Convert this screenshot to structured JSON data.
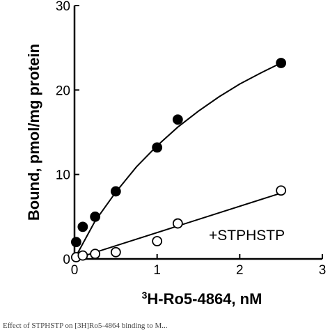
{
  "chart_data": {
    "type": "scatter",
    "xlabel_super": "3",
    "xlabel": "H-Ro5-4864, nM",
    "ylabel": "Bound, pmol/mg protein",
    "xlim": [
      0,
      3
    ],
    "ylim": [
      0,
      30
    ],
    "x_ticks": [
      "0",
      "1",
      "2",
      "3"
    ],
    "y_ticks": [
      "0",
      "10",
      "20",
      "30"
    ],
    "grid": false,
    "annotation": "+STPHSTP",
    "series": [
      {
        "marker": "filled-circle",
        "color": "#000000",
        "points": [
          [
            0.02,
            2.0
          ],
          [
            0.1,
            3.8
          ],
          [
            0.25,
            5.0
          ],
          [
            0.5,
            8.0
          ],
          [
            1.0,
            13.2
          ],
          [
            1.25,
            16.5
          ],
          [
            2.5,
            23.2
          ]
        ],
        "fit": [
          [
            0.0,
            0.0
          ],
          [
            0.25,
            4.5
          ],
          [
            0.5,
            7.9
          ],
          [
            0.75,
            10.9
          ],
          [
            1.0,
            13.4
          ],
          [
            1.25,
            15.6
          ],
          [
            1.5,
            17.5
          ],
          [
            1.75,
            19.2
          ],
          [
            2.0,
            20.7
          ],
          [
            2.25,
            22.0
          ],
          [
            2.5,
            23.2
          ]
        ]
      },
      {
        "marker": "open-circle",
        "color": "#000000",
        "points": [
          [
            0.02,
            0.2
          ],
          [
            0.1,
            0.4
          ],
          [
            0.25,
            0.6
          ],
          [
            0.5,
            0.8
          ],
          [
            1.0,
            2.1
          ],
          [
            1.25,
            4.2
          ],
          [
            2.5,
            8.1
          ]
        ],
        "fit": [
          [
            0.0,
            0.0
          ],
          [
            2.5,
            7.8
          ]
        ]
      }
    ]
  },
  "caption": "Effect of STPHSTP on [3H]Ro5-4864 binding to M..."
}
